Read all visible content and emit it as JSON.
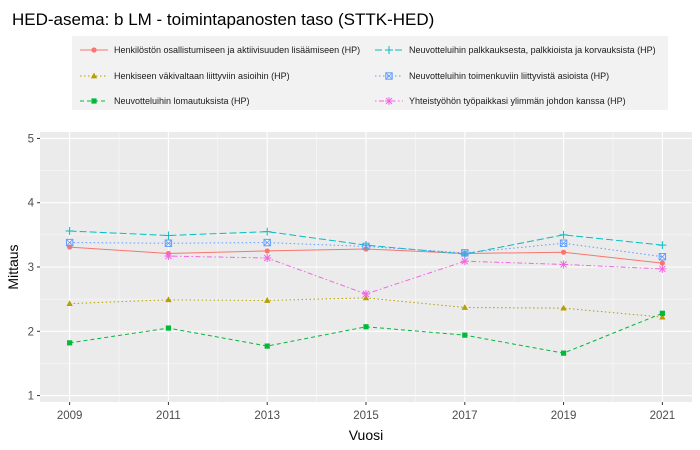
{
  "chart_data": {
    "type": "line",
    "title": "HED-asema: b LM  - toimintapanosten taso (STTK-HED)",
    "xlabel": "Vuosi",
    "ylabel": "Mittaus",
    "x": [
      2009,
      2011,
      2013,
      2015,
      2017,
      2019,
      2021
    ],
    "ylim": [
      1,
      5
    ],
    "yticks": [
      1,
      2,
      3,
      4,
      5
    ],
    "grid": true,
    "legend_position": "top",
    "series": [
      {
        "name": "Henkilöstön osallistumiseen ja aktiivisuuden lisäämiseen (HP)",
        "color": "#F8766D",
        "marker": "circle",
        "dash": "solid",
        "values": [
          3.31,
          3.21,
          3.25,
          3.28,
          3.21,
          3.23,
          3.06
        ]
      },
      {
        "name": "Henkiseen väkivaltaan liittyviin asioihin (HP)",
        "color": "#B79F00",
        "marker": "triangle",
        "dash": "dotted",
        "values": [
          2.43,
          2.49,
          2.48,
          2.52,
          2.37,
          2.36,
          2.22
        ]
      },
      {
        "name": "Neuvotteluihin lomautuksista (HP)",
        "color": "#00BA38",
        "marker": "square",
        "dash": "dashed",
        "values": [
          1.82,
          2.05,
          1.77,
          2.07,
          1.94,
          1.66,
          2.28
        ]
      },
      {
        "name": "Neuvotteluihin palkkauksesta, palkkioista ja korvauksista (HP)",
        "color": "#00BFC4",
        "marker": "plus",
        "dash": "longdash",
        "values": [
          3.56,
          3.49,
          3.55,
          3.34,
          3.2,
          3.5,
          3.34
        ]
      },
      {
        "name": "Neuvotteluihin toimenkuviin liittyvistä asioista (HP)",
        "color": "#619CFF",
        "marker": "boxx",
        "dash": "dotted",
        "values": [
          3.38,
          3.37,
          3.38,
          3.32,
          3.22,
          3.37,
          3.16
        ]
      },
      {
        "name": "Yhteistyöhön työpaikkasi ylimmän johdon kanssa (HP)",
        "color": "#F564E3",
        "marker": "asterisk",
        "dash": "dotdash",
        "values": [
          null,
          3.17,
          3.14,
          2.58,
          3.09,
          3.04,
          2.97
        ]
      }
    ]
  }
}
